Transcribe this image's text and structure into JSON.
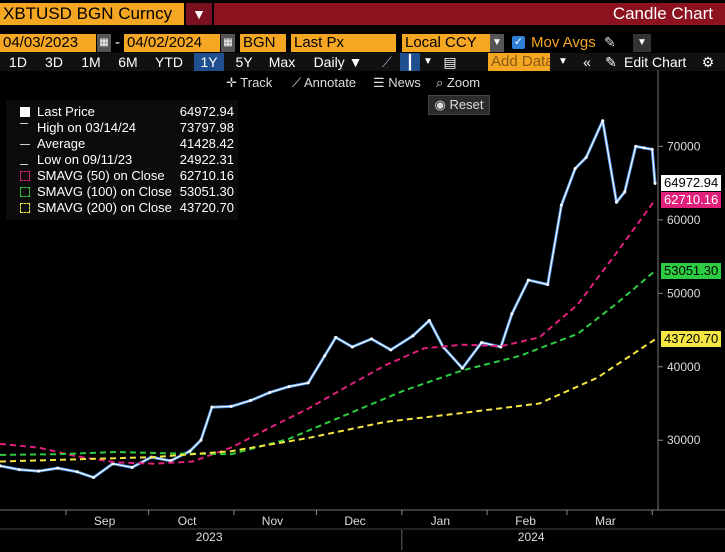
{
  "header": {
    "ticker": "XBTUSD BGN Curncy",
    "menu_glyph": "▼",
    "title": "Candle Chart"
  },
  "controls": {
    "start_date": "04/03/2023",
    "separator": "-",
    "end_date": "04/02/2024",
    "source": "BGN",
    "field": "Last Px",
    "currency": "Local CCY",
    "mov_avgs_label": "Mov Avgs",
    "add_data_placeholder": "Add Data"
  },
  "toolbar": {
    "ranges": [
      "1D",
      "3D",
      "1M",
      "6M",
      "YTD",
      "1Y",
      "5Y",
      "Max"
    ],
    "active_range": "1Y",
    "period": "Daily ▼",
    "edit_chart": "Edit Chart",
    "track": "Track",
    "annotate": "Annotate",
    "news": "News",
    "zoom": "Zoom",
    "reset": "Reset"
  },
  "legend": [
    {
      "label": "Last Price",
      "value": "64972.94",
      "color": "#ffffff",
      "style": "solid"
    },
    {
      "label": "High on 03/14/24",
      "value": "73797.98",
      "color": "#cccccc",
      "style": "high"
    },
    {
      "label": "Average",
      "value": "41428.42",
      "color": "#cccccc",
      "style": "avg"
    },
    {
      "label": "Low on 09/11/23",
      "value": "24922.31",
      "color": "#cccccc",
      "style": "low"
    },
    {
      "label": "SMAVG (50)  on Close",
      "value": "62710.16",
      "color": "#e0207a",
      "style": "dash"
    },
    {
      "label": "SMAVG (100)  on Close",
      "value": "53051.30",
      "color": "#2ecc40",
      "style": "dash"
    },
    {
      "label": "SMAVG (200)  on Close",
      "value": "43720.70",
      "color": "#f4e542",
      "style": "dash"
    }
  ],
  "price_tags": [
    {
      "value": "64972.94",
      "at": 64972.94,
      "bg": "#ffffff",
      "fg": "#000000"
    },
    {
      "value": "62710.16",
      "at": 62710.16,
      "bg": "#e0207a",
      "fg": "#ffffff"
    },
    {
      "value": "53051.30",
      "at": 53051.3,
      "bg": "#2ecc40",
      "fg": "#000000"
    },
    {
      "value": "43720.70",
      "at": 43720.7,
      "bg": "#f4e542",
      "fg": "#000000"
    }
  ],
  "chart_data": {
    "type": "line",
    "y_ticks": [
      30000,
      40000,
      50000,
      60000,
      70000
    ],
    "y_tick_labels": [
      "30000",
      "40000",
      "50000",
      "60000",
      "70000"
    ],
    "ylim": [
      20500,
      77000
    ],
    "x_range": [
      "2023-08-08",
      "2024-04-02"
    ],
    "month_labels": [
      {
        "label": "Sep",
        "date": "2023-09-15"
      },
      {
        "label": "Oct",
        "date": "2023-10-15"
      },
      {
        "label": "Nov",
        "date": "2023-11-15"
      },
      {
        "label": "Dec",
        "date": "2023-12-15"
      },
      {
        "label": "Jan",
        "date": "2024-01-15"
      },
      {
        "label": "Feb",
        "date": "2024-02-15"
      },
      {
        "label": "Mar",
        "date": "2024-03-15"
      }
    ],
    "year_labels": [
      {
        "label": "2023",
        "date": "2023-10-23"
      },
      {
        "label": "2024",
        "date": "2024-02-17"
      }
    ],
    "year_divider_date": "2024-01-01",
    "series": [
      {
        "name": "Last Price",
        "color": "#ffffff",
        "points": [
          [
            "2023-08-08",
            26500
          ],
          [
            "2023-08-15",
            26000
          ],
          [
            "2023-08-22",
            25800
          ],
          [
            "2023-08-29",
            26200
          ],
          [
            "2023-09-05",
            25700
          ],
          [
            "2023-09-11",
            24922
          ],
          [
            "2023-09-18",
            26800
          ],
          [
            "2023-09-25",
            26300
          ],
          [
            "2023-10-02",
            27700
          ],
          [
            "2023-10-09",
            27200
          ],
          [
            "2023-10-16",
            28500
          ],
          [
            "2023-10-20",
            30000
          ],
          [
            "2023-10-24",
            34500
          ],
          [
            "2023-10-31",
            34600
          ],
          [
            "2023-11-07",
            35400
          ],
          [
            "2023-11-14",
            36500
          ],
          [
            "2023-11-21",
            37300
          ],
          [
            "2023-11-28",
            37800
          ],
          [
            "2023-12-04",
            41500
          ],
          [
            "2023-12-08",
            44000
          ],
          [
            "2023-12-14",
            42700
          ],
          [
            "2023-12-21",
            43800
          ],
          [
            "2023-12-28",
            42300
          ],
          [
            "2024-01-05",
            44200
          ],
          [
            "2024-01-11",
            46300
          ],
          [
            "2024-01-16",
            42700
          ],
          [
            "2024-01-23",
            39800
          ],
          [
            "2024-01-30",
            43300
          ],
          [
            "2024-02-06",
            42700
          ],
          [
            "2024-02-10",
            47200
          ],
          [
            "2024-02-16",
            51800
          ],
          [
            "2024-02-23",
            51200
          ],
          [
            "2024-02-28",
            62000
          ],
          [
            "2024-03-04",
            67000
          ],
          [
            "2024-03-08",
            68500
          ],
          [
            "2024-03-14",
            73500
          ],
          [
            "2024-03-19",
            62400
          ],
          [
            "2024-03-22",
            63800
          ],
          [
            "2024-03-26",
            70000
          ],
          [
            "2024-03-29",
            69800
          ],
          [
            "2024-04-01",
            69600
          ],
          [
            "2024-04-02",
            64973
          ]
        ]
      },
      {
        "name": "SMAVG (50)  on Close",
        "color": "#e0207a",
        "points": [
          [
            "2023-08-08",
            29500
          ],
          [
            "2023-08-22",
            29000
          ],
          [
            "2023-09-05",
            27800
          ],
          [
            "2023-09-19",
            27000
          ],
          [
            "2023-10-03",
            26800
          ],
          [
            "2023-10-17",
            27100
          ],
          [
            "2023-10-31",
            29000
          ],
          [
            "2023-11-14",
            31700
          ],
          [
            "2023-11-28",
            34300
          ],
          [
            "2023-12-12",
            37300
          ],
          [
            "2023-12-26",
            40200
          ],
          [
            "2024-01-09",
            42500
          ],
          [
            "2024-01-23",
            43000
          ],
          [
            "2024-02-06",
            42800
          ],
          [
            "2024-02-20",
            44000
          ],
          [
            "2024-03-05",
            48500
          ],
          [
            "2024-03-19",
            55500
          ],
          [
            "2024-04-02",
            62710
          ]
        ]
      },
      {
        "name": "SMAVG (100)  on Close",
        "color": "#2ecc40",
        "points": [
          [
            "2023-08-08",
            28000
          ],
          [
            "2023-08-29",
            28100
          ],
          [
            "2023-09-19",
            28400
          ],
          [
            "2023-10-10",
            28200
          ],
          [
            "2023-10-31",
            28100
          ],
          [
            "2023-11-21",
            30200
          ],
          [
            "2023-12-12",
            33500
          ],
          [
            "2024-01-02",
            36800
          ],
          [
            "2024-01-23",
            39500
          ],
          [
            "2024-02-13",
            41500
          ],
          [
            "2024-03-05",
            44500
          ],
          [
            "2024-03-19",
            48600
          ],
          [
            "2024-04-02",
            53051
          ]
        ]
      },
      {
        "name": "SMAVG (200)  on Close",
        "color": "#f4e542",
        "points": [
          [
            "2023-08-08",
            27100
          ],
          [
            "2023-09-05",
            27400
          ],
          [
            "2023-10-03",
            27700
          ],
          [
            "2023-10-31",
            28500
          ],
          [
            "2023-11-28",
            30300
          ],
          [
            "2023-12-26",
            32500
          ],
          [
            "2024-01-23",
            33700
          ],
          [
            "2024-02-20",
            35000
          ],
          [
            "2024-03-12",
            38500
          ],
          [
            "2024-04-02",
            43721
          ]
        ]
      }
    ]
  }
}
